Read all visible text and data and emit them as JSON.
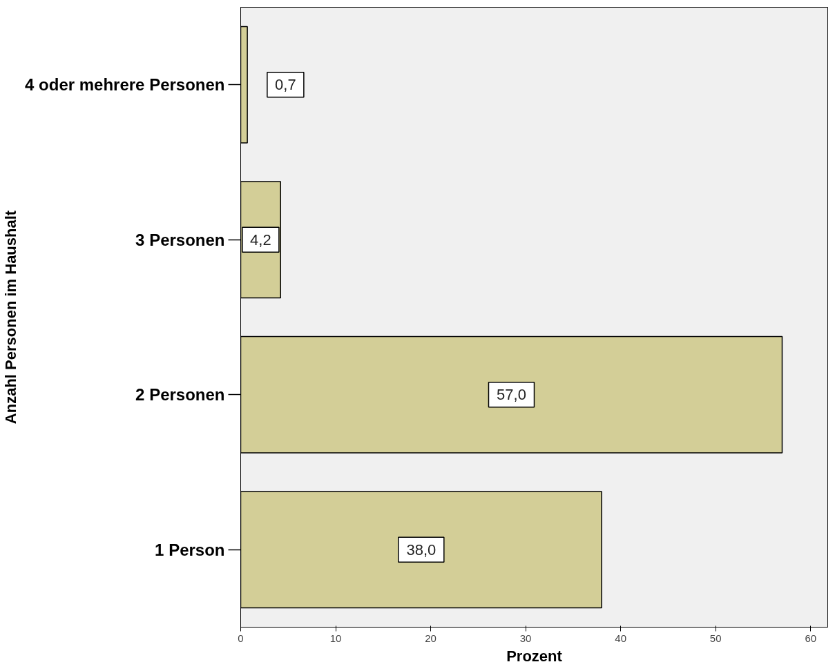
{
  "chart_data": {
    "type": "bar",
    "orientation": "horizontal",
    "xlabel": "Prozent",
    "ylabel": "Anzahl Personen im Haushalt",
    "categories": [
      "4 oder mehrere Personen",
      "3 Personen",
      "2 Personen",
      "1 Person"
    ],
    "values": [
      0.7,
      4.2,
      57.0,
      38.0
    ],
    "value_labels": [
      "0,7",
      "4,2",
      "57,0",
      "38,0"
    ],
    "color": "#d3ce97",
    "xlim": [
      0,
      61.8
    ],
    "xticks": [
      0,
      10,
      20,
      30,
      40,
      50,
      60
    ],
    "grid": false
  }
}
